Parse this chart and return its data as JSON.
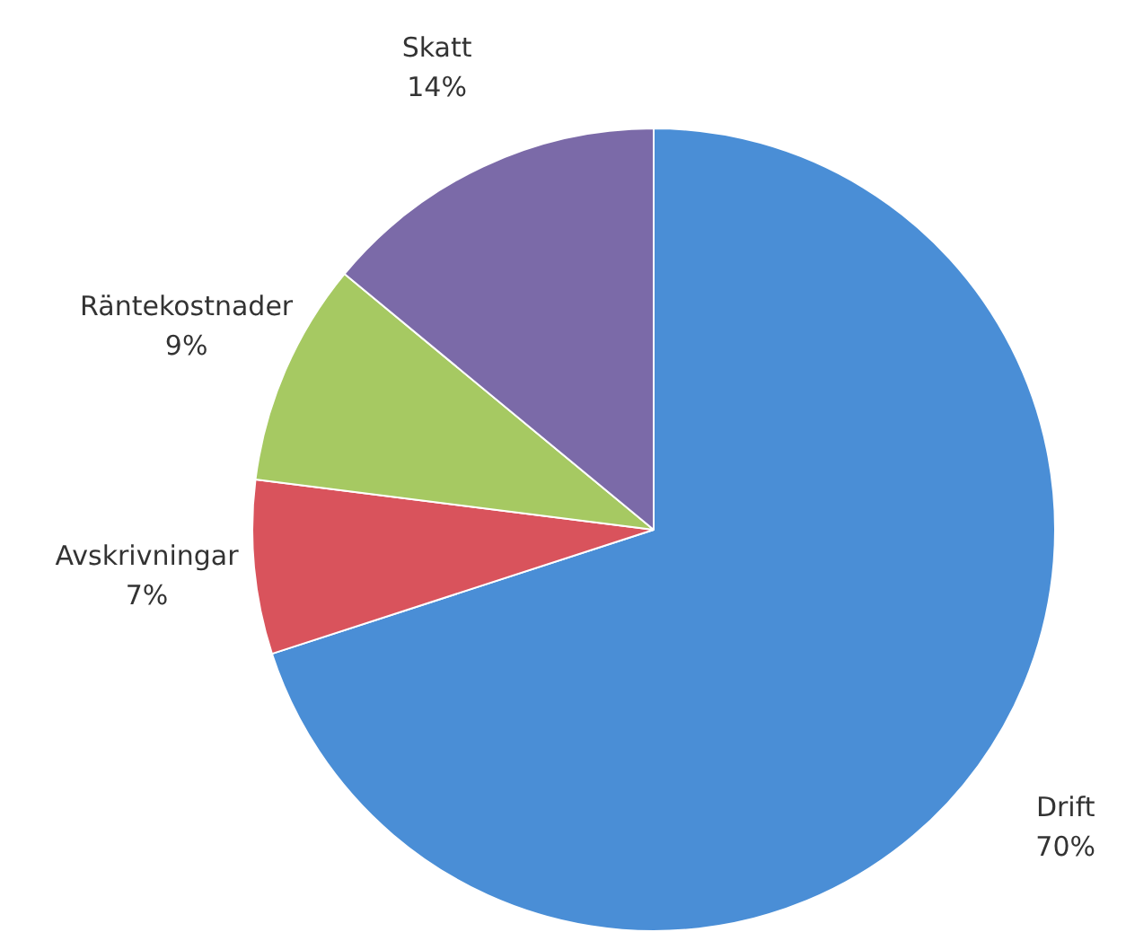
{
  "chart_data": {
    "type": "pie",
    "categories": [
      "Drift",
      "Avskrivningar",
      "Räntekostnader",
      "Skatt"
    ],
    "values": [
      70,
      7,
      9,
      14
    ],
    "colors": [
      "#4a8ed6",
      "#d9535c",
      "#a6c962",
      "#7b6aa8"
    ],
    "value_labels": [
      "70%",
      "7%",
      "9%",
      "14%"
    ],
    "legend": false
  }
}
